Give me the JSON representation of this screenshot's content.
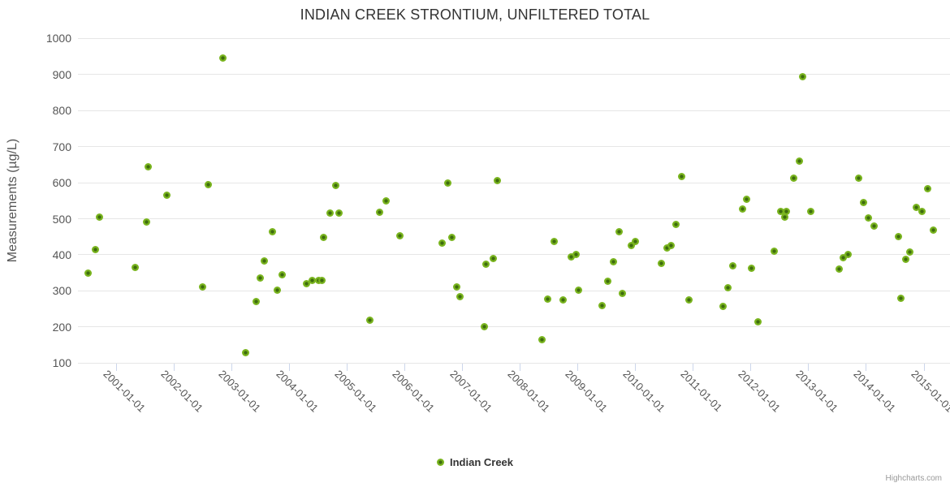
{
  "title": "INDIAN CREEK STRONTIUM, UNFILTERED TOTAL",
  "credit": "Highcharts.com",
  "legend": {
    "label": "Indian Creek"
  },
  "colors": {
    "marker_outer": "#79b41e",
    "marker_center": "#3e6c0e",
    "gridline": "#e6e6e6",
    "axis_line": "#ccd6eb",
    "title_text": "#333333",
    "axis_text": "#555555",
    "credit_text": "#999999"
  },
  "chart_data": {
    "type": "scatter",
    "title": "INDIAN CREEK STRONTIUM, UNFILTERED TOTAL",
    "xlabel": "",
    "ylabel": "Measurements (µg/L)",
    "ylim": [
      100,
      1000
    ],
    "y_ticks": [
      100,
      200,
      300,
      400,
      500,
      600,
      700,
      800,
      900,
      1000
    ],
    "x_tick_years": [
      2001,
      2002,
      2003,
      2004,
      2005,
      2006,
      2007,
      2008,
      2009,
      2010,
      2011,
      2012,
      2013,
      2014,
      2015
    ],
    "x_tick_labels": [
      "2001-01-01",
      "2002-01-01",
      "2003-01-01",
      "2004-01-01",
      "2005-01-01",
      "2006-01-01",
      "2007-01-01",
      "2008-01-01",
      "2009-01-01",
      "2010-01-01",
      "2011-01-01",
      "2012-01-01",
      "2013-01-01",
      "2014-01-01",
      "2015-01-01"
    ],
    "xlim": [
      2000.33,
      2015.45
    ],
    "grid": "horizontal",
    "legend_position": "bottom-center",
    "series": [
      {
        "name": "Indian Creek",
        "color": "#79b41e",
        "points": [
          [
            2000.51,
            350
          ],
          [
            2000.63,
            415
          ],
          [
            2000.71,
            505
          ],
          [
            2001.33,
            365
          ],
          [
            2001.52,
            490
          ],
          [
            2001.55,
            645
          ],
          [
            2001.87,
            565
          ],
          [
            2002.49,
            312
          ],
          [
            2002.6,
            595
          ],
          [
            2002.85,
            945
          ],
          [
            2003.24,
            128
          ],
          [
            2003.43,
            270
          ],
          [
            2003.49,
            335
          ],
          [
            2003.56,
            382
          ],
          [
            2003.7,
            465
          ],
          [
            2003.79,
            303
          ],
          [
            2003.88,
            345
          ],
          [
            2004.29,
            320
          ],
          [
            2004.39,
            330
          ],
          [
            2004.51,
            330
          ],
          [
            2004.56,
            330
          ],
          [
            2004.59,
            448
          ],
          [
            2004.7,
            515
          ],
          [
            2004.8,
            593
          ],
          [
            2004.86,
            515
          ],
          [
            2005.4,
            218
          ],
          [
            2005.57,
            517
          ],
          [
            2005.68,
            550
          ],
          [
            2005.91,
            452
          ],
          [
            2006.65,
            432
          ],
          [
            2006.74,
            600
          ],
          [
            2006.82,
            449
          ],
          [
            2006.9,
            310
          ],
          [
            2006.96,
            283
          ],
          [
            2007.38,
            200
          ],
          [
            2007.4,
            374
          ],
          [
            2007.53,
            389
          ],
          [
            2007.6,
            605
          ],
          [
            2008.38,
            165
          ],
          [
            2008.47,
            278
          ],
          [
            2008.59,
            437
          ],
          [
            2008.74,
            275
          ],
          [
            2008.89,
            394
          ],
          [
            2008.97,
            402
          ],
          [
            2009.01,
            302
          ],
          [
            2009.42,
            260
          ],
          [
            2009.52,
            327
          ],
          [
            2009.61,
            380
          ],
          [
            2009.71,
            464
          ],
          [
            2009.77,
            294
          ],
          [
            2009.92,
            425
          ],
          [
            2009.99,
            437
          ],
          [
            2010.44,
            377
          ],
          [
            2010.54,
            418
          ],
          [
            2010.62,
            425
          ],
          [
            2010.7,
            484
          ],
          [
            2010.8,
            616
          ],
          [
            2010.92,
            275
          ],
          [
            2011.51,
            258
          ],
          [
            2011.6,
            309
          ],
          [
            2011.69,
            370
          ],
          [
            2011.86,
            527
          ],
          [
            2011.93,
            553
          ],
          [
            2012.01,
            363
          ],
          [
            2012.12,
            215
          ],
          [
            2012.41,
            411
          ],
          [
            2012.51,
            520
          ],
          [
            2012.59,
            504
          ],
          [
            2012.62,
            520
          ],
          [
            2012.74,
            612
          ],
          [
            2012.84,
            660
          ],
          [
            2012.89,
            893
          ],
          [
            2013.03,
            520
          ],
          [
            2013.53,
            361
          ],
          [
            2013.6,
            392
          ],
          [
            2013.68,
            402
          ],
          [
            2013.87,
            612
          ],
          [
            2013.95,
            546
          ],
          [
            2014.03,
            502
          ],
          [
            2014.14,
            479
          ],
          [
            2014.55,
            450
          ],
          [
            2014.6,
            279
          ],
          [
            2014.69,
            388
          ],
          [
            2014.75,
            407
          ],
          [
            2014.87,
            532
          ],
          [
            2014.96,
            521
          ],
          [
            2015.06,
            583
          ],
          [
            2015.16,
            468
          ]
        ]
      }
    ]
  }
}
